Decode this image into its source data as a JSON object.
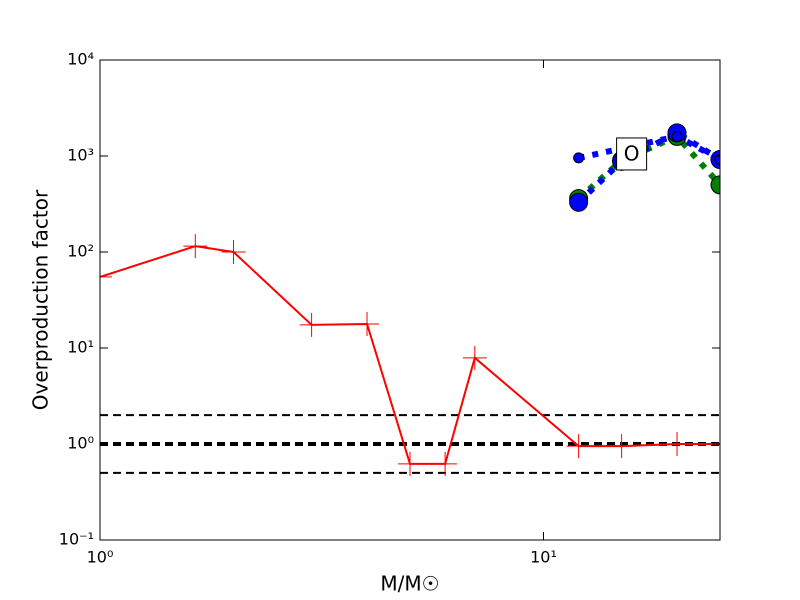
{
  "chart_data": {
    "type": "line",
    "xlabel": "M/M☉",
    "ylabel": "Overproduction factor",
    "xscale": "log",
    "yscale": "log",
    "xlim": [
      1,
      25
    ],
    "ylim": [
      0.1,
      10000
    ],
    "xticks": [
      {
        "value": 1,
        "label": "10⁰"
      },
      {
        "value": 10,
        "label": "10¹"
      }
    ],
    "yticks": [
      {
        "value": 0.1,
        "label": "10⁻¹"
      },
      {
        "value": 1,
        "label": "10⁰"
      },
      {
        "value": 10,
        "label": "10¹"
      },
      {
        "value": 100,
        "label": "10²"
      },
      {
        "value": 1000,
        "label": "10³"
      },
      {
        "value": 10000,
        "label": "10⁴"
      }
    ],
    "hlines": [
      {
        "value": 2,
        "color": "#000000",
        "width": 2
      },
      {
        "value": 1,
        "color": "#000000",
        "width": 4
      },
      {
        "value": 0.5,
        "color": "#000000",
        "width": 2
      }
    ],
    "series": [
      {
        "color": "#ff0000",
        "linestyle": "solid",
        "marker": "plus",
        "x": [
          1,
          1.64,
          2,
          3,
          4,
          5,
          6,
          7,
          12,
          15,
          20,
          25
        ],
        "values": [
          55,
          115,
          100,
          17.4,
          17.8,
          0.62,
          0.62,
          7.9,
          0.95,
          0.95,
          1.0,
          1.0
        ]
      },
      {
        "color": "#008000",
        "linestyle": "dotted",
        "marker": "circle",
        "x": [
          12,
          15,
          20,
          25
        ],
        "values": [
          360,
          900,
          1600,
          500
        ]
      },
      {
        "color": "#0000ff",
        "linestyle": "dotted",
        "marker": "circle",
        "x": [
          12,
          15,
          20,
          25
        ],
        "values": [
          330,
          880,
          1740,
          920
        ]
      },
      {
        "color": "#0000ff",
        "linestyle": "dotted",
        "marker": "small-circle",
        "x": [
          12,
          20,
          25
        ],
        "values": [
          955,
          1600,
          920
        ]
      }
    ],
    "annotation": {
      "text": "O",
      "x": 15.8,
      "y": 1050
    }
  }
}
